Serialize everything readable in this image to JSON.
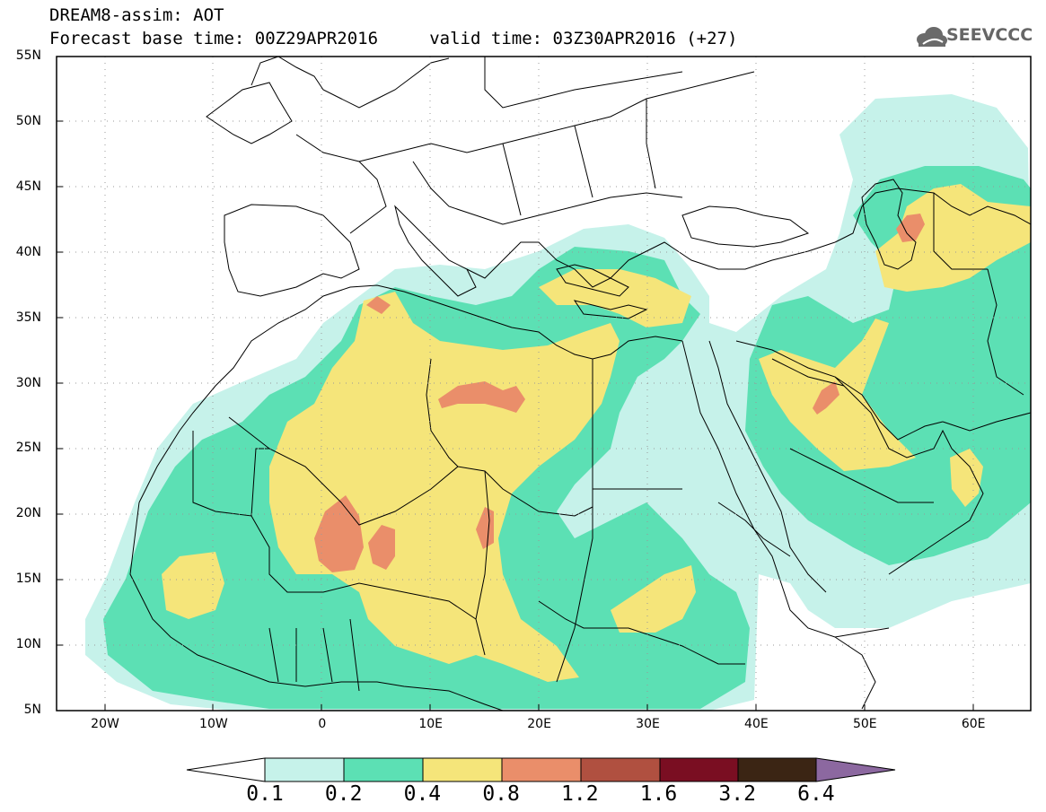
{
  "header": {
    "line1": "DREAM8-assim: AOT",
    "line2": "Forecast base time: 00Z29APR2016     valid time: 03Z30APR2016 (+27)"
  },
  "logo": {
    "text": "SEEVCCC",
    "icon": "cloud-icon"
  },
  "map": {
    "lat_labels": [
      "55N",
      "50N",
      "45N",
      "40N",
      "35N",
      "30N",
      "25N",
      "20N",
      "15N",
      "10N",
      "5N"
    ],
    "lon_labels": [
      "20W",
      "10W",
      "0",
      "10E",
      "20E",
      "30E",
      "40E",
      "50E",
      "60E"
    ],
    "lat_range": [
      5,
      55
    ],
    "lon_range": [
      -25,
      65
    ],
    "grid": "dotted"
  },
  "colorbar": {
    "labels": [
      "0.1",
      "0.2",
      "0.4",
      "0.8",
      "1.2",
      "1.6",
      "3.2",
      "6.4"
    ],
    "colors": [
      "#ffffff",
      "#c6f2ea",
      "#5ce0b4",
      "#f5e57a",
      "#ea8e6a",
      "#b05040",
      "#7a0e22",
      "#3b2514",
      "#8c68a0"
    ],
    "class_colors": {
      "low": "#c6f2ea",
      "mid": "#5ce0b4",
      "high": "#f5e57a",
      "vhigh": "#ea8e6a"
    }
  }
}
